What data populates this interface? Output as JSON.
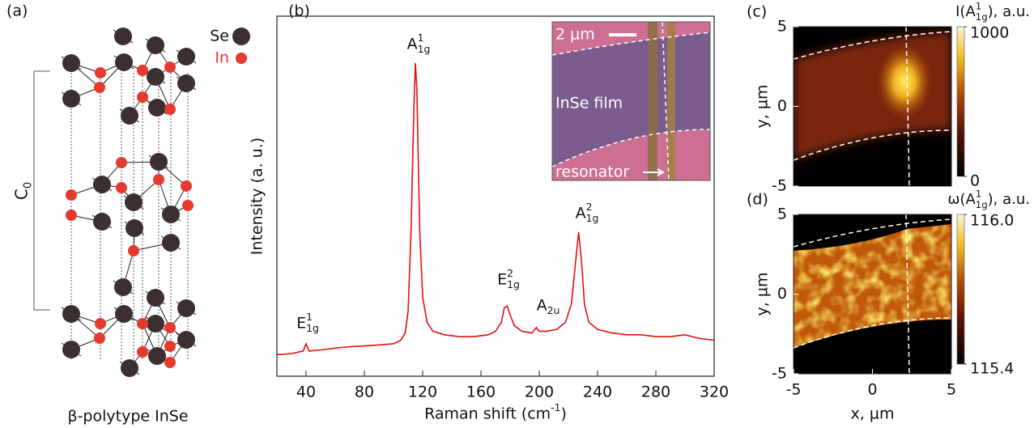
{
  "structure": {
    "panel": "(a)",
    "legend": [
      {
        "name": "Se",
        "color": "#3b2f2f"
      },
      {
        "name": "In",
        "color": "#e53a2e"
      }
    ],
    "period": {
      "base": "C",
      "sub": "0"
    },
    "caption": "β-polytype InSe"
  },
  "chart_data": [
    {
      "type": "line",
      "panel": "(b)",
      "color": "#e3100f",
      "xlabel": {
        "base": "Raman shift (cm",
        "sup": "-1",
        "tail": ")"
      },
      "ylabel": "Intensity (a. u.)",
      "xlim": [
        20,
        320
      ],
      "xticks": [
        40,
        80,
        120,
        160,
        200,
        240,
        280,
        320
      ],
      "ylim": [
        0,
        100
      ],
      "x": [
        20,
        30,
        38,
        40,
        42,
        50,
        60,
        70,
        80,
        90,
        100,
        105,
        108,
        110,
        112,
        114,
        115,
        116,
        117,
        118,
        120,
        123,
        127,
        135,
        145,
        155,
        165,
        170,
        174,
        176,
        178,
        180,
        183,
        188,
        195,
        198,
        200,
        205,
        212,
        218,
        222,
        225,
        227,
        229,
        231,
        234,
        240,
        250,
        260,
        270,
        280,
        290,
        300,
        305,
        310,
        320
      ],
      "values": [
        6.0,
        6.3,
        7,
        9,
        7,
        7.3,
        7.8,
        8.2,
        8.4,
        8.7,
        9.0,
        10,
        12,
        18,
        40,
        75,
        87,
        80,
        60,
        40,
        22,
        15,
        12.5,
        11.5,
        11,
        11,
        11.5,
        12.5,
        15,
        19,
        19.5,
        17,
        14,
        12.5,
        12,
        13.5,
        12.5,
        12.5,
        13,
        15,
        20,
        32,
        40,
        32,
        20,
        15,
        13,
        12,
        11.5,
        11.5,
        11,
        11,
        11.5,
        11,
        10.5,
        10
      ],
      "annotations": [
        {
          "base": "E",
          "sup": "1",
          "sub": "1g"
        },
        {
          "base": "A",
          "sup": "1",
          "sub": "1g"
        },
        {
          "base": "E",
          "sup": "2",
          "sub": "1g"
        },
        {
          "base": "A",
          "sub": "2u"
        },
        {
          "base": "A",
          "sup": "2",
          "sub": "1g"
        }
      ],
      "inset": {
        "scale": "2 µm",
        "film": "InSe film",
        "resonator": "resonator"
      }
    },
    {
      "type": "heatmap",
      "panel": "(c)",
      "xlim": [
        -5,
        5
      ],
      "ylim": [
        -5,
        5
      ],
      "yticks": [
        -5,
        0,
        5
      ],
      "ylabel": "y, µm",
      "colorbar": {
        "lim": [
          0,
          1000
        ],
        "ticks": [
          0,
          1000
        ],
        "title": {
          "base": "I(A",
          "sup": "1",
          "sub": "1g",
          "tail": "), a.u."
        }
      }
    },
    {
      "type": "heatmap",
      "panel": "(d)",
      "xlim": [
        -5,
        5
      ],
      "ylim": [
        -5,
        5
      ],
      "xticks": [
        -5,
        0,
        5
      ],
      "yticks": [
        -5,
        0,
        5
      ],
      "xlabel": "x, µm",
      "ylabel": "y, µm",
      "colorbar": {
        "lim": [
          115.4,
          116.0
        ],
        "ticks": [
          115.4,
          {
            "value": 116.0,
            "label": "116.0"
          }
        ],
        "title": {
          "base": "ω(A",
          "sup": "1",
          "sub": "1g",
          "tail": "), a.u."
        }
      }
    }
  ]
}
